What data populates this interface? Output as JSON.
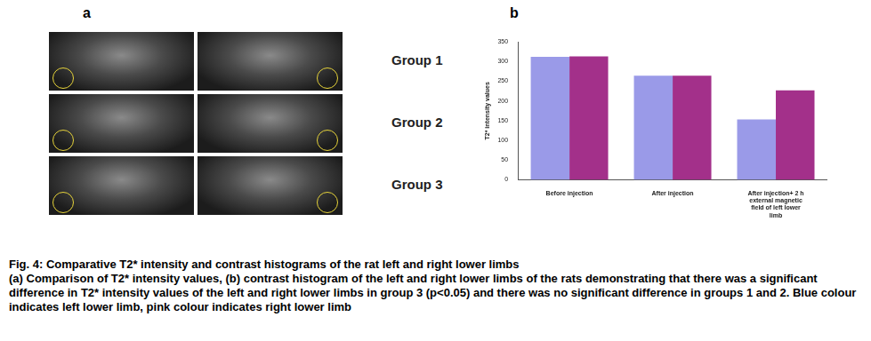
{
  "figure": {
    "panel_a": {
      "label": "a",
      "groups": [
        "Group 1",
        "Group 2",
        "Group 3"
      ]
    },
    "panel_b": {
      "label": "b"
    },
    "caption": {
      "title": "Fig. 4: Comparative T2* intensity and contrast histograms of the rat left and right lower limbs",
      "text": "(a) Comparison of T2* intensity values, (b) contrast histogram of the left and right lower limbs of the rats demonstrating that there was a significant difference in T2* intensity values of the left and right lower limbs in group 3 (p<0.05) and there was no significant difference in groups 1 and 2. Blue colour indicates left lower limb, pink colour indicates right lower limb"
    }
  },
  "chart_data": {
    "type": "bar",
    "y_label": "T2* intensity values",
    "categories": [
      "Before injection",
      "After injection",
      "After injection+ 2 h external magnetic field of left lower limb"
    ],
    "series": [
      {
        "color": "#9a9ae8",
        "values": [
          312,
          264,
          153
        ]
      },
      {
        "color": "#a3308a",
        "values": [
          313,
          264,
          227
        ]
      }
    ],
    "ylim": [
      0,
      350
    ],
    "yticks": [
      0,
      50,
      100,
      150,
      200,
      250,
      300,
      350
    ],
    "grid": false
  }
}
